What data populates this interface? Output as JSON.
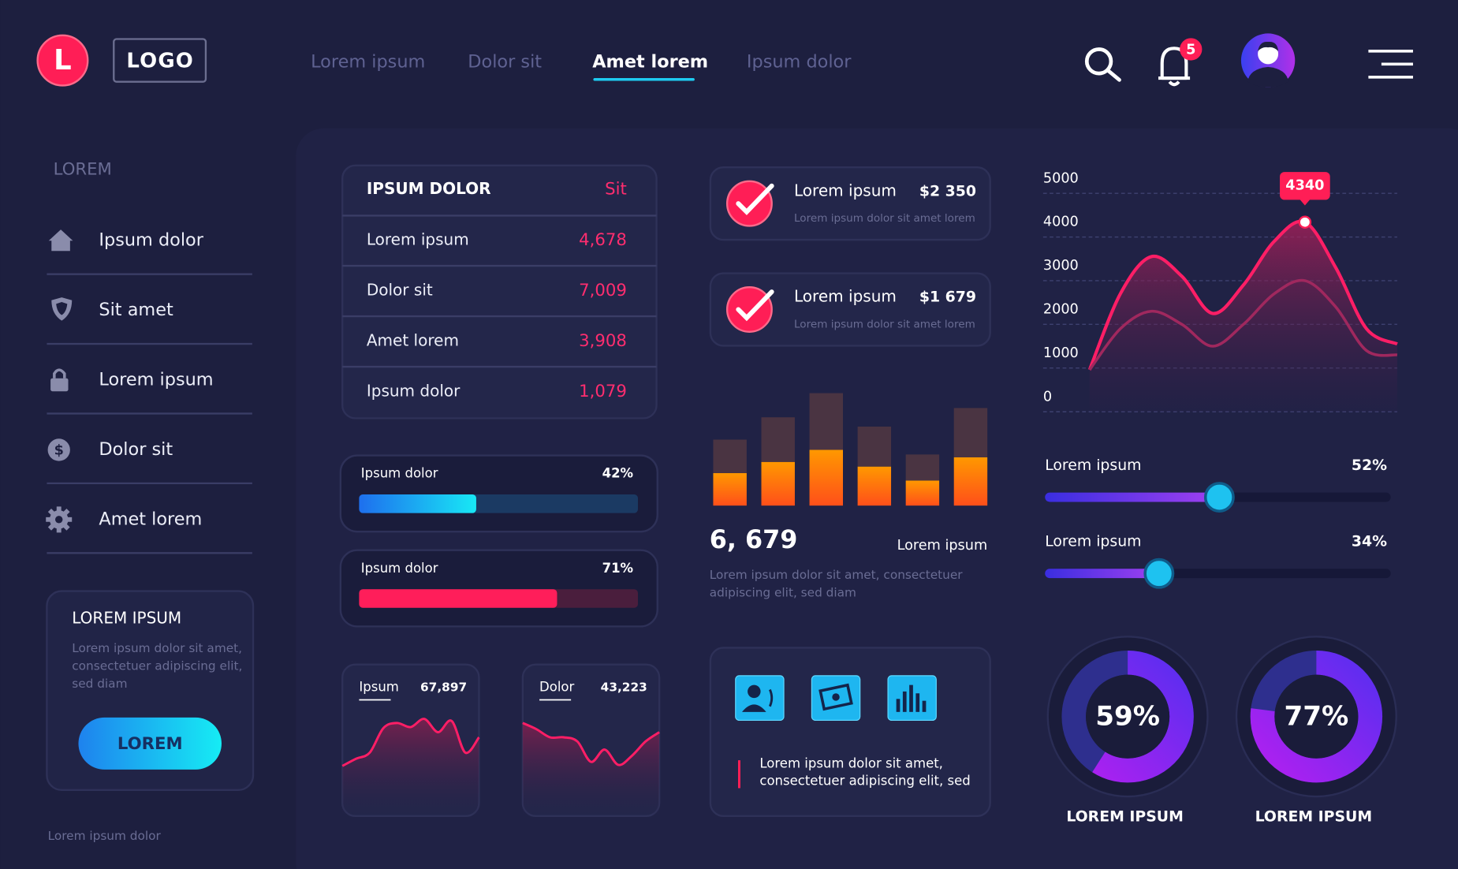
{
  "header": {
    "logo_letter": "L",
    "logo": "LOGO",
    "nav": [
      "Lorem ipsum",
      "Dolor sit",
      "Amet lorem",
      "Ipsum dolor"
    ],
    "notifications": "5"
  },
  "sidebar": {
    "heading": "LOREM",
    "items": [
      "Ipsum dolor",
      "Sit amet",
      "Lorem ipsum",
      "Dolor sit",
      "Amet lorem"
    ],
    "card": {
      "title": "LOREM IPSUM",
      "text": [
        "Lorem ipsum dolor sit amet,",
        "consectetuer adipiscing elit,",
        "sed diam"
      ],
      "button": "LOREM"
    },
    "footer": "Lorem ipsum dolor"
  },
  "table": {
    "title": "IPSUM DOLOR",
    "action": "Sit",
    "rows": [
      [
        "Lorem ipsum",
        "4,678"
      ],
      [
        "Dolor sit",
        "7,009"
      ],
      [
        "Amet lorem",
        "3,908"
      ],
      [
        "Ipsum dolor",
        "1,079"
      ]
    ]
  },
  "progress": [
    {
      "label": "Ipsum dolor",
      "value": 42,
      "value_label": "42%",
      "color": "#1ad6f2",
      "track": "#1b3a63"
    },
    {
      "label": "Ipsum dolor",
      "value": 71,
      "value_label": "71%",
      "color": "#ff1e5a",
      "track": "#4a1e3d"
    }
  ],
  "mini_cards": [
    {
      "label": "Ipsum",
      "total": "67,897",
      "ylim": [
        0,
        100
      ],
      "values": [
        49,
        56,
        62,
        86,
        91,
        87,
        95,
        82,
        93,
        62,
        77
      ]
    },
    {
      "label": "Dolor",
      "total": "43,223",
      "ylim": [
        0,
        100
      ],
      "values": [
        91,
        85,
        77,
        77,
        73,
        53,
        65,
        50,
        59,
        73,
        82
      ]
    }
  ],
  "payments": [
    {
      "title": "Lorem ipsum",
      "amount": "$2 350",
      "text": "Lorem ipsum dolor sit amet lorem"
    },
    {
      "title": "Lorem ipsum",
      "amount": "$1 679",
      "text": "Lorem ipsum dolor sit amet lorem"
    }
  ],
  "bar_chart": {
    "type": "bar",
    "ylim": [
      0,
      130
    ],
    "series": [
      {
        "color": "#ff7a10",
        "values": [
          35,
          47,
          60,
          42,
          27,
          52
        ]
      },
      {
        "color": "#4a3442",
        "values": [
          36,
          48,
          61,
          43,
          28,
          53
        ]
      }
    ],
    "total": "6, 679",
    "label": "Lorem ipsum",
    "text": [
      "Lorem ipsum dolor sit amet, consectetuer",
      "adipiscing elit, sed diam"
    ]
  },
  "icons_card": {
    "text": [
      "Lorem ipsum dolor sit amet,",
      "consectetuer adipiscing elit, sed"
    ]
  },
  "line_chart": {
    "type": "line",
    "ylim": [
      0,
      5000
    ],
    "yticks": [
      0,
      1000,
      2000,
      3000,
      4000,
      5000
    ],
    "grid": true,
    "series": [
      {
        "color": "#ff1e66",
        "values": [
          960,
          2700,
          3550,
          3100,
          2250,
          2900,
          3900,
          4340,
          3300,
          1900,
          1550
        ]
      },
      {
        "color": "#a0285e",
        "values": [
          960,
          1900,
          2300,
          2000,
          1500,
          2000,
          2700,
          3000,
          2400,
          1400,
          1300
        ]
      }
    ],
    "annotation": 4340
  },
  "sliders": [
    {
      "label": "Lorem ipsum",
      "value": 52,
      "value_label": "52%"
    },
    {
      "label": "Lorem ipsum",
      "value": 34,
      "value_label": "34%"
    }
  ],
  "donuts": [
    {
      "value": 59,
      "value_label": "59%",
      "label": "LOREM IPSUM"
    },
    {
      "value": 77,
      "value_label": "77%",
      "label": "LOREM IPSUM"
    }
  ]
}
